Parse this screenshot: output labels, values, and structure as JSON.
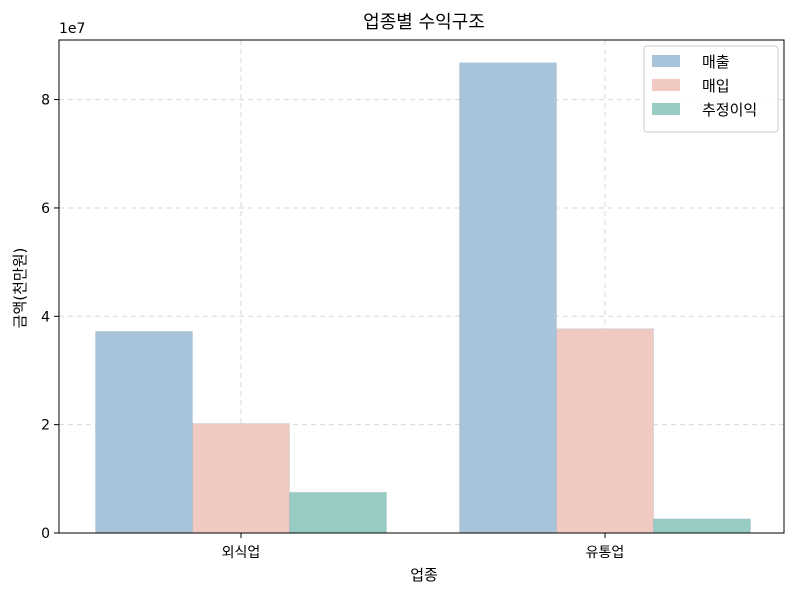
{
  "chart_data": {
    "type": "bar",
    "title": "업종별 수익구조",
    "xlabel": "업종",
    "ylabel": "금액(천만원)",
    "y_offset_label": "1e7",
    "categories": [
      "외식업",
      "유통업"
    ],
    "series": [
      {
        "name": "매출",
        "values": [
          37200000,
          86800000
        ],
        "color": "#a7c4da"
      },
      {
        "name": "매입",
        "values": [
          20200000,
          37700000
        ],
        "color": "#f0c9c3"
      },
      {
        "name": "추정이익",
        "values": [
          7500000,
          2600000
        ],
        "color": "#98cbc4"
      }
    ],
    "ylim": [
      0,
      91000000
    ],
    "yticks": [
      0,
      20000000,
      40000000,
      60000000,
      80000000
    ],
    "ytick_labels": [
      "0",
      "2",
      "4",
      "6",
      "8"
    ],
    "grid": true,
    "legend_position": "top-right"
  }
}
